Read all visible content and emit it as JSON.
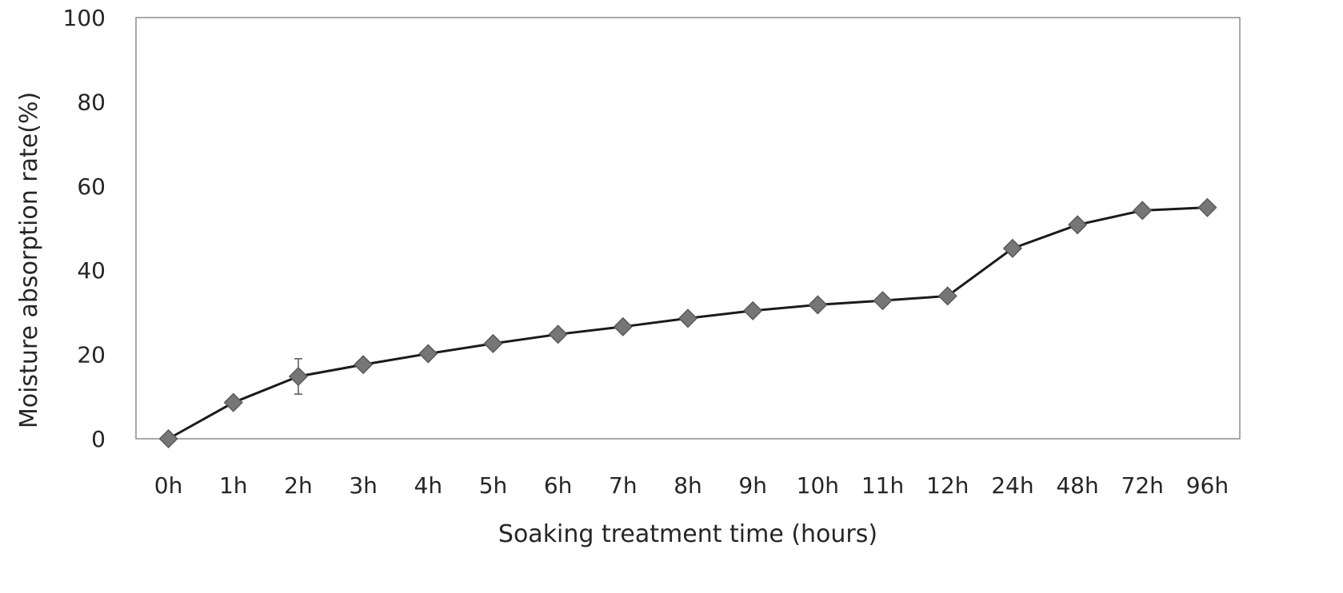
{
  "chart_data": {
    "type": "line",
    "title": "",
    "xlabel": "Soaking treatment time (hours)",
    "ylabel": "Moisture absorption rate(%)",
    "categories": [
      "0h",
      "1h",
      "2h",
      "3h",
      "4h",
      "5h",
      "6h",
      "7h",
      "8h",
      "9h",
      "10h",
      "11h",
      "12h",
      "24h",
      "48h",
      "72h",
      "96h"
    ],
    "series": [
      {
        "values": [
          0,
          8.6,
          14.8,
          17.6,
          20.2,
          22.6,
          24.8,
          26.6,
          28.6,
          30.4,
          31.8,
          32.8,
          33.9,
          45.2,
          50.8,
          54.2,
          54.9
        ],
        "error": [
          0,
          0,
          4.2,
          0,
          0,
          0,
          0,
          0,
          0,
          0,
          0,
          0,
          0,
          0,
          0,
          0,
          0
        ]
      }
    ],
    "ylim": [
      0,
      100
    ],
    "yticks": [
      0,
      20,
      40,
      60,
      80,
      100
    ],
    "grid": false,
    "legend": "none",
    "colors": {
      "line": "#1a1a1a",
      "marker": "#767676",
      "marker_edge": "#5a5a5a",
      "frame": "#8c8c8c",
      "text": "#262626"
    }
  }
}
